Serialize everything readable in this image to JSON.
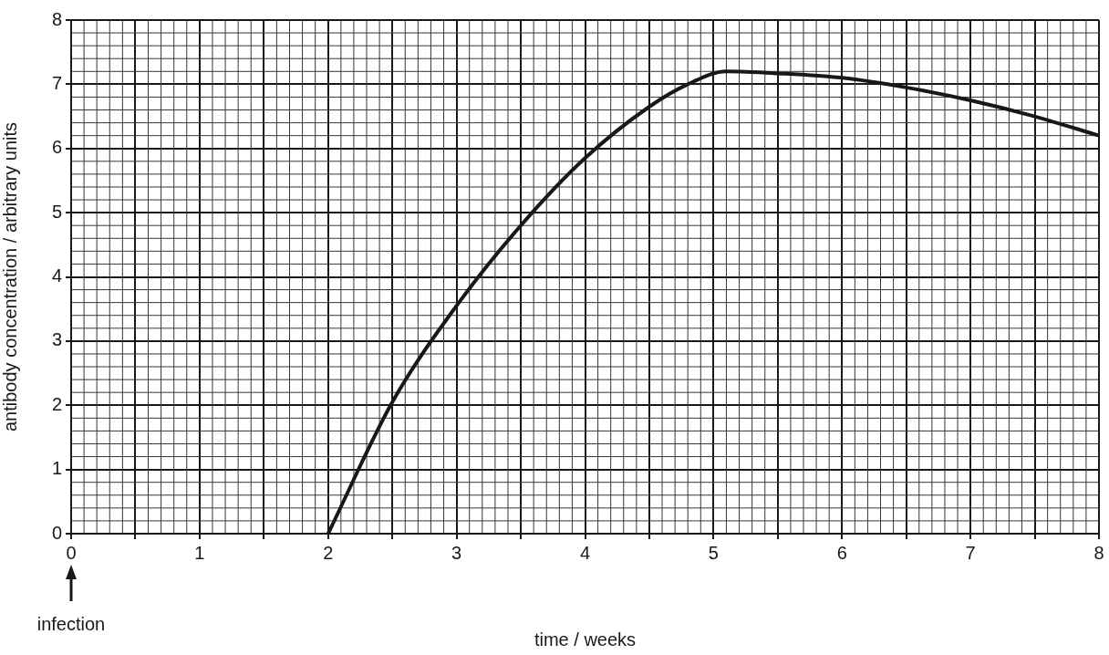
{
  "chart_data": {
    "type": "line",
    "xlabel": "time / weeks",
    "ylabel": "antibody concentration / arbitrary units",
    "x": [
      2,
      2.5,
      3,
      3.5,
      4,
      4.5,
      4.8,
      5.1,
      5.5,
      6,
      6.5,
      7,
      7.5,
      8
    ],
    "series": [
      {
        "color": "#1a1716",
        "values": [
          0,
          2.05,
          3.55,
          4.8,
          5.85,
          6.65,
          7.0,
          7.2,
          7.17,
          7.1,
          6.95,
          6.75,
          6.5,
          6.2
        ]
      }
    ],
    "xlim": [
      0,
      8
    ],
    "xticks": [
      0,
      {
        "value": 0.5,
        "label": null
      },
      1,
      {
        "value": 1.5,
        "label": null
      },
      2,
      {
        "value": 2.5,
        "label": null
      },
      3,
      {
        "value": 3.5,
        "label": null
      },
      4,
      {
        "value": 4.5,
        "label": null
      },
      5,
      {
        "value": 5.5,
        "label": null
      },
      6,
      {
        "value": 6.5,
        "label": null
      },
      7,
      {
        "value": 7.5,
        "label": null
      },
      8
    ],
    "ylim": [
      0,
      8
    ],
    "yticks": [
      0,
      1,
      2,
      3,
      4,
      5,
      6,
      7,
      8
    ],
    "grid": true,
    "marker": "none",
    "line_style": "solid",
    "legend": false,
    "annotations": [
      "infection"
    ]
  }
}
